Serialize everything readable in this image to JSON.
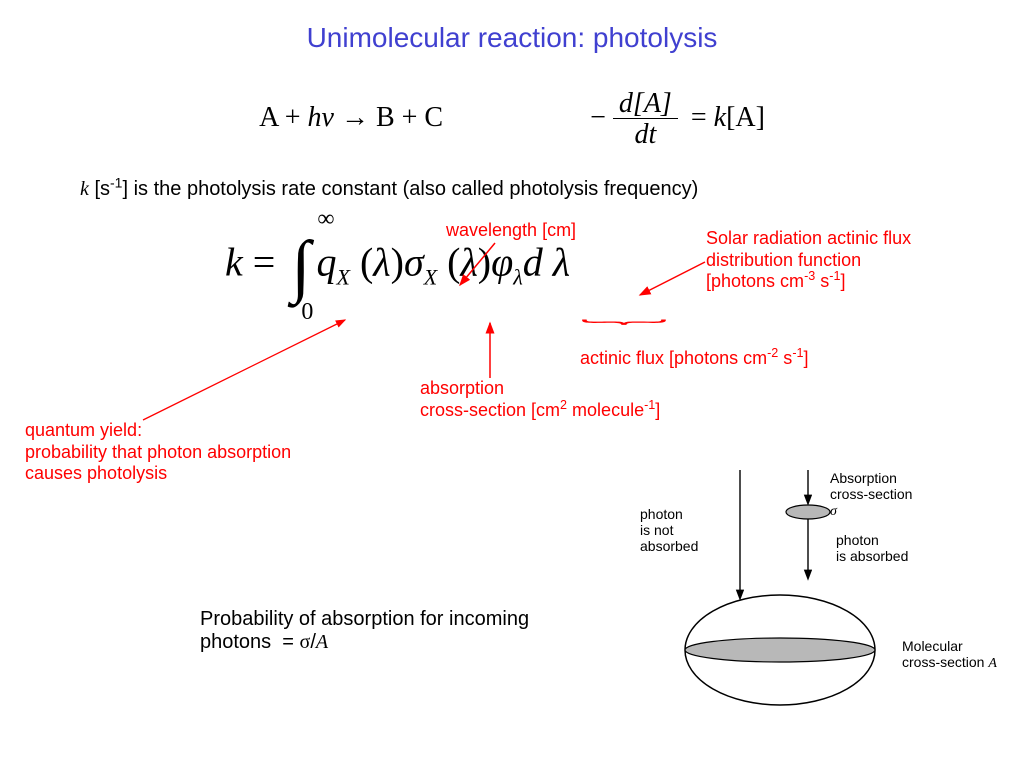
{
  "title": "Unimolecular reaction: photolysis",
  "equations": {
    "reaction_html": "A + <span class='italic'>h&nu;</span> &rarr; B + C",
    "rate_lhs_num": "d[A]",
    "rate_lhs_den": "dt",
    "rate_rhs_html": "= <span class='italic'>k</span>[A]",
    "minus": "−",
    "integral_html": "<span class='var'>k</span> = <span class='int-sign'>∫<span class='int-top'>∞</span><span class='int-bot'>0</span></span><span class='var'>q</span><sub>X</sub> (<span class='var'>λ</span>)<span class='var'>σ</span><sub>X</sub> (<span class='var'>λ</span>)<span class='var'>φ</span><sub>λ</sub><span class='var'>d λ</span>"
  },
  "rate_desc_html": "<span class='k'>k</span> [s<sup>-1</sup>] is the photolysis rate constant (also called photolysis frequency)",
  "annotations": {
    "wavelength": "wavelength [cm]",
    "solar_html": "Solar radiation actinic flux<br>distribution function<br>[photons cm<sup>-3</sup> s<sup>-1</sup>]",
    "actinic_html": "actinic flux [photons cm<sup>-2</sup> s<sup>-1</sup>]",
    "absorption_html": "absorption<br>cross-section [cm<sup>2</sup> molecule<sup>-1</sup>]",
    "quantum_yield_html": "quantum yield:<br>probability that photon absorption<br>causes photolysis"
  },
  "probability_html": "Probability of absorption for incoming photons&nbsp;&nbsp;= <span class='sigma'>σ</span>/<span class='A'>A</span>",
  "diagram_labels": {
    "not_absorbed": "photon<br>is not<br>absorbed",
    "abs_cs_html": "Absorption<br>cross-section<br><span class='sigma'>σ</span>",
    "absorbed": "photon<br>is absorbed",
    "mol_cs_html": "Molecular<br>cross-section <span class='A'>A</span>"
  },
  "colors": {
    "title": "#4040d0",
    "annotation": "#ff0000",
    "text": "#000000",
    "diagram_fill": "#b8b8b8"
  }
}
